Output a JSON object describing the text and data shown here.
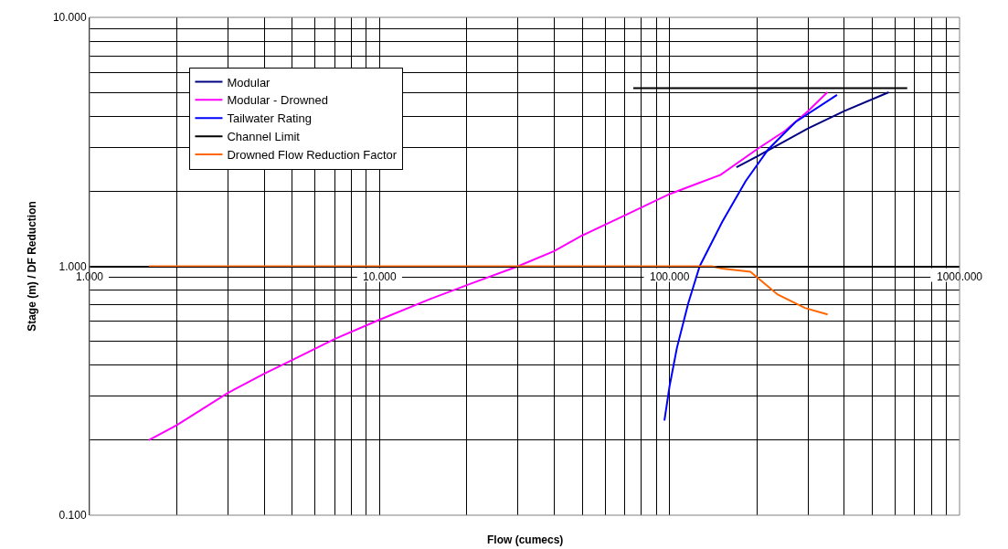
{
  "chart_data": {
    "type": "line",
    "xlabel": "Flow (cumecs)",
    "ylabel": "Stage (m) / DF Reduction",
    "log": "xy",
    "grid": true,
    "legend": "top left",
    "marker": "none",
    "line_style": "solid",
    "xlim": [
      1,
      1000
    ],
    "ylim": [
      0.1,
      10
    ],
    "xticks": [
      {
        "value": 1,
        "label": "1.000"
      },
      {
        "value": 2,
        "label": null
      },
      {
        "value": 3,
        "label": null
      },
      {
        "value": 4,
        "label": null
      },
      {
        "value": 5,
        "label": null
      },
      {
        "value": 6,
        "label": null
      },
      {
        "value": 7,
        "label": null
      },
      {
        "value": 8,
        "label": null
      },
      {
        "value": 9,
        "label": null
      },
      {
        "value": 10,
        "label": "10.000"
      },
      {
        "value": 20,
        "label": null
      },
      {
        "value": 30,
        "label": null
      },
      {
        "value": 40,
        "label": null
      },
      {
        "value": 50,
        "label": null
      },
      {
        "value": 60,
        "label": null
      },
      {
        "value": 70,
        "label": null
      },
      {
        "value": 80,
        "label": null
      },
      {
        "value": 90,
        "label": null
      },
      {
        "value": 100,
        "label": "100.000"
      },
      {
        "value": 200,
        "label": null
      },
      {
        "value": 300,
        "label": null
      },
      {
        "value": 400,
        "label": null
      },
      {
        "value": 500,
        "label": null
      },
      {
        "value": 600,
        "label": null
      },
      {
        "value": 700,
        "label": null
      },
      {
        "value": 800,
        "label": null
      },
      {
        "value": 900,
        "label": null
      },
      {
        "value": 1000,
        "label": "1000.000"
      }
    ],
    "yticks": [
      {
        "value": 0.1,
        "label": "0.100"
      },
      {
        "value": 0.2,
        "label": null
      },
      {
        "value": 0.3,
        "label": null
      },
      {
        "value": 0.4,
        "label": null
      },
      {
        "value": 0.5,
        "label": null
      },
      {
        "value": 0.6,
        "label": null
      },
      {
        "value": 0.7,
        "label": null
      },
      {
        "value": 0.8,
        "label": null
      },
      {
        "value": 0.9,
        "label": null
      },
      {
        "value": 1,
        "label": "1.000"
      },
      {
        "value": 2,
        "label": null
      },
      {
        "value": 3,
        "label": null
      },
      {
        "value": 4,
        "label": null
      },
      {
        "value": 5,
        "label": null
      },
      {
        "value": 6,
        "label": null
      },
      {
        "value": 7,
        "label": null
      },
      {
        "value": 8,
        "label": null
      },
      {
        "value": 9,
        "label": null
      },
      {
        "value": 10,
        "label": "10.000"
      }
    ],
    "series": [
      {
        "name": "Modular",
        "color": "#000080",
        "x": [
          170,
          200,
          300,
          400,
          570
        ],
        "values": [
          2.5,
          2.76,
          3.58,
          4.2,
          5.0
        ]
      },
      {
        "name": "Modular - Drowned",
        "color": "#ff00ff",
        "x": [
          1.6,
          2,
          3,
          4,
          5,
          7,
          10,
          15,
          20,
          30,
          40,
          50,
          70,
          100,
          150,
          200,
          250,
          300,
          350
        ],
        "values": [
          0.2,
          0.23,
          0.31,
          0.37,
          0.42,
          0.51,
          0.61,
          0.74,
          0.84,
          1.0,
          1.15,
          1.33,
          1.6,
          1.95,
          2.33,
          2.95,
          3.5,
          4.2,
          5.0
        ]
      },
      {
        "name": "Tailwater Rating",
        "color": "#0000ff",
        "x": [
          96,
          100,
          106,
          116,
          127,
          152,
          183,
          219,
          272,
          378
        ],
        "values": [
          0.24,
          0.33,
          0.47,
          0.71,
          1.0,
          1.51,
          2.2,
          2.95,
          3.8,
          4.88
        ]
      },
      {
        "name": "Channel Limit",
        "color": "#000000",
        "x": [
          75,
          660
        ],
        "values": [
          5.2,
          5.2
        ]
      },
      {
        "name": "Drowned Flow Reduction Factor",
        "color": "#ff6600",
        "x": [
          1.6,
          10,
          100,
          140,
          152,
          190,
          236,
          293,
          351
        ],
        "values": [
          1.0,
          1.0,
          1.0,
          1.0,
          0.98,
          0.95,
          0.77,
          0.68,
          0.64
        ]
      }
    ]
  }
}
